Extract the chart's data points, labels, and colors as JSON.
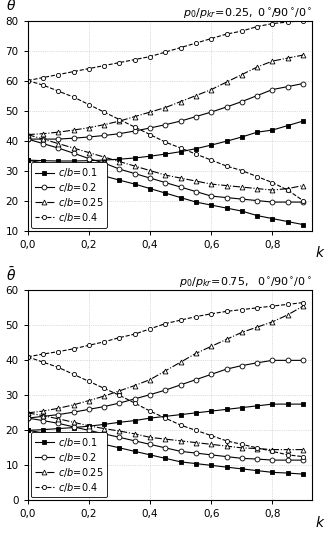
{
  "plot1": {
    "title": "$p_0/p_{kr}\\!=\\!0.25,\\ 0^\\circ\\!/90^\\circ\\!/0^\\circ$",
    "ylabel": "$\\bar{\\theta}$",
    "xlabel": "$k$",
    "ylim": [
      10,
      80
    ],
    "xlim": [
      0.0,
      0.93
    ],
    "yticks": [
      10,
      20,
      30,
      40,
      50,
      60,
      70,
      80
    ],
    "xticks": [
      0.0,
      0.2,
      0.4,
      0.6,
      0.8
    ],
    "xticklabels": [
      "0,0",
      "0,2",
      "0,4",
      "0,6",
      "0,8"
    ],
    "series": [
      {
        "label": "c/b=0.1",
        "marker": "s",
        "mfc": "black",
        "mec": "black",
        "ms": 3.0,
        "linestyle": "solid",
        "upper_k": [
          0.0,
          0.05,
          0.1,
          0.15,
          0.2,
          0.25,
          0.3,
          0.35,
          0.4,
          0.45,
          0.5,
          0.55,
          0.6,
          0.65,
          0.7,
          0.75,
          0.8,
          0.85,
          0.9
        ],
        "upper_v": [
          33.5,
          33.3,
          33.2,
          33.2,
          33.3,
          33.5,
          33.8,
          34.2,
          34.8,
          35.5,
          36.3,
          37.3,
          38.5,
          39.8,
          41.2,
          42.8,
          43.5,
          45.0,
          46.5
        ],
        "lower_k": [
          0.0,
          0.05,
          0.1,
          0.15,
          0.2,
          0.25,
          0.3,
          0.35,
          0.4,
          0.45,
          0.5,
          0.55,
          0.6,
          0.65,
          0.7,
          0.75,
          0.8,
          0.85,
          0.9
        ],
        "lower_v": [
          33.5,
          32.5,
          31.5,
          30.5,
          29.5,
          28.2,
          26.8,
          25.5,
          24.0,
          22.5,
          21.0,
          19.5,
          18.5,
          17.5,
          16.5,
          15.0,
          14.0,
          13.0,
          12.0
        ]
      },
      {
        "label": "c/b=0.2",
        "marker": "o",
        "mfc": "white",
        "mec": "black",
        "ms": 3.5,
        "linestyle": "solid",
        "upper_k": [
          0.0,
          0.05,
          0.1,
          0.15,
          0.2,
          0.25,
          0.3,
          0.35,
          0.4,
          0.45,
          0.5,
          0.55,
          0.6,
          0.65,
          0.7,
          0.75,
          0.8,
          0.85,
          0.9
        ],
        "upper_v": [
          40.5,
          40.5,
          40.5,
          40.8,
          41.2,
          41.7,
          42.3,
          43.2,
          44.2,
          45.3,
          46.5,
          48.0,
          49.5,
          51.2,
          53.0,
          55.0,
          57.0,
          58.0,
          59.0
        ],
        "lower_k": [
          0.0,
          0.05,
          0.1,
          0.15,
          0.2,
          0.25,
          0.3,
          0.35,
          0.4,
          0.45,
          0.5,
          0.55,
          0.6,
          0.65,
          0.7,
          0.75,
          0.8,
          0.85,
          0.9
        ],
        "lower_v": [
          40.5,
          39.0,
          37.5,
          35.8,
          34.0,
          32.5,
          30.5,
          29.0,
          27.5,
          26.0,
          24.5,
          23.0,
          21.5,
          21.0,
          20.5,
          20.0,
          19.5,
          19.5,
          19.5
        ]
      },
      {
        "label": "c/b=0.25",
        "marker": "^",
        "mfc": "white",
        "mec": "black",
        "ms": 3.5,
        "linestyle": "dashdot",
        "upper_k": [
          0.0,
          0.05,
          0.1,
          0.15,
          0.2,
          0.25,
          0.3,
          0.35,
          0.4,
          0.45,
          0.5,
          0.55,
          0.6,
          0.65,
          0.7,
          0.75,
          0.8,
          0.85,
          0.9
        ],
        "upper_v": [
          42.0,
          42.3,
          42.8,
          43.5,
          44.3,
          45.3,
          46.5,
          48.0,
          49.5,
          51.0,
          53.0,
          55.0,
          57.0,
          59.5,
          62.0,
          64.5,
          66.5,
          67.5,
          68.5
        ],
        "lower_k": [
          0.0,
          0.05,
          0.1,
          0.15,
          0.2,
          0.25,
          0.3,
          0.35,
          0.4,
          0.45,
          0.5,
          0.55,
          0.6,
          0.65,
          0.7,
          0.75,
          0.8,
          0.85,
          0.9
        ],
        "lower_v": [
          42.0,
          40.5,
          39.0,
          37.5,
          36.0,
          34.5,
          33.0,
          31.5,
          30.0,
          28.5,
          27.5,
          26.5,
          25.5,
          25.0,
          24.5,
          24.0,
          23.5,
          24.0,
          25.0
        ]
      },
      {
        "label": "c/b=0.4",
        "marker": "o",
        "mfc": "white",
        "mec": "black",
        "ms": 3.0,
        "linestyle": "dashed",
        "upper_k": [
          0.0,
          0.05,
          0.1,
          0.15,
          0.2,
          0.25,
          0.3,
          0.35,
          0.4,
          0.45,
          0.5,
          0.55,
          0.6,
          0.65,
          0.7,
          0.75,
          0.8,
          0.85,
          0.9
        ],
        "upper_v": [
          60.0,
          61.0,
          62.0,
          63.0,
          64.0,
          65.0,
          66.0,
          67.0,
          68.0,
          69.5,
          71.0,
          72.5,
          74.0,
          75.5,
          76.5,
          78.0,
          79.0,
          79.5,
          80.0
        ],
        "lower_k": [
          0.0,
          0.05,
          0.1,
          0.15,
          0.2,
          0.25,
          0.3,
          0.35,
          0.4,
          0.45,
          0.5,
          0.55,
          0.6,
          0.65,
          0.7,
          0.75,
          0.8,
          0.85,
          0.9
        ],
        "lower_v": [
          60.0,
          58.5,
          56.5,
          54.5,
          52.0,
          49.5,
          47.0,
          44.5,
          42.0,
          39.5,
          37.5,
          35.5,
          33.5,
          31.5,
          30.0,
          28.0,
          26.0,
          23.5,
          20.0
        ]
      }
    ]
  },
  "plot2": {
    "title": "$p_0/p_{kr}\\!=\\!0.75,\\ \\ 0^\\circ\\!/90^\\circ\\!/0^\\circ$",
    "ylabel": "$\\bar{\\theta}$",
    "xlabel": "$k$",
    "ylim": [
      0,
      60
    ],
    "xlim": [
      0.0,
      0.93
    ],
    "yticks": [
      0,
      10,
      20,
      30,
      40,
      50,
      60
    ],
    "xticks": [
      0.0,
      0.2,
      0.4,
      0.6,
      0.8
    ],
    "xticklabels": [
      "0,0",
      "0,2",
      "0,4",
      "0,6",
      "0,8"
    ],
    "series": [
      {
        "label": "c/b=0.1",
        "marker": "s",
        "mfc": "black",
        "mec": "black",
        "ms": 3.0,
        "linestyle": "solid",
        "upper_k": [
          0.0,
          0.05,
          0.1,
          0.15,
          0.2,
          0.25,
          0.3,
          0.35,
          0.4,
          0.45,
          0.5,
          0.55,
          0.6,
          0.65,
          0.7,
          0.75,
          0.8,
          0.85,
          0.9
        ],
        "upper_v": [
          20.0,
          20.2,
          20.5,
          20.8,
          21.2,
          21.7,
          22.3,
          22.8,
          23.5,
          24.0,
          24.5,
          25.0,
          25.5,
          26.0,
          26.5,
          27.0,
          27.5,
          27.5,
          27.5
        ],
        "lower_k": [
          0.0,
          0.05,
          0.1,
          0.15,
          0.2,
          0.25,
          0.3,
          0.35,
          0.4,
          0.45,
          0.5,
          0.55,
          0.6,
          0.65,
          0.7,
          0.75,
          0.8,
          0.85,
          0.9
        ],
        "lower_v": [
          20.0,
          19.3,
          18.5,
          17.7,
          16.8,
          16.0,
          15.0,
          14.0,
          13.0,
          12.0,
          11.0,
          10.5,
          10.0,
          9.5,
          9.0,
          8.5,
          8.0,
          7.8,
          7.5
        ]
      },
      {
        "label": "c/b=0.2",
        "marker": "o",
        "mfc": "white",
        "mec": "black",
        "ms": 3.5,
        "linestyle": "solid",
        "upper_k": [
          0.0,
          0.05,
          0.1,
          0.15,
          0.2,
          0.25,
          0.3,
          0.35,
          0.4,
          0.45,
          0.5,
          0.55,
          0.6,
          0.65,
          0.7,
          0.75,
          0.8,
          0.85,
          0.9
        ],
        "upper_v": [
          23.5,
          24.0,
          24.5,
          25.2,
          26.0,
          26.8,
          27.8,
          29.0,
          30.2,
          31.5,
          33.0,
          34.5,
          36.0,
          37.5,
          38.5,
          39.3,
          40.0,
          40.0,
          40.0
        ],
        "lower_k": [
          0.0,
          0.05,
          0.1,
          0.15,
          0.2,
          0.25,
          0.3,
          0.35,
          0.4,
          0.45,
          0.5,
          0.55,
          0.6,
          0.65,
          0.7,
          0.75,
          0.8,
          0.85,
          0.9
        ],
        "lower_v": [
          23.5,
          22.8,
          22.0,
          21.0,
          20.0,
          19.0,
          18.0,
          17.0,
          16.0,
          15.0,
          14.0,
          13.5,
          13.0,
          12.5,
          12.0,
          11.8,
          11.5,
          11.5,
          11.5
        ]
      },
      {
        "label": "c/b=0.25",
        "marker": "^",
        "mfc": "white",
        "mec": "black",
        "ms": 3.5,
        "linestyle": "dashdot",
        "upper_k": [
          0.0,
          0.05,
          0.1,
          0.15,
          0.2,
          0.25,
          0.3,
          0.35,
          0.4,
          0.45,
          0.5,
          0.55,
          0.6,
          0.65,
          0.7,
          0.75,
          0.8,
          0.85,
          0.9
        ],
        "upper_v": [
          25.0,
          25.5,
          26.3,
          27.3,
          28.5,
          29.8,
          31.3,
          32.8,
          34.5,
          37.0,
          39.5,
          42.0,
          44.0,
          46.0,
          48.0,
          49.5,
          51.0,
          53.0,
          55.5
        ],
        "lower_k": [
          0.0,
          0.05,
          0.1,
          0.15,
          0.2,
          0.25,
          0.3,
          0.35,
          0.4,
          0.45,
          0.5,
          0.55,
          0.6,
          0.65,
          0.7,
          0.75,
          0.8,
          0.85,
          0.9
        ],
        "lower_v": [
          25.0,
          24.2,
          23.3,
          22.3,
          21.3,
          20.5,
          19.8,
          19.0,
          18.0,
          17.5,
          17.0,
          16.5,
          16.0,
          15.5,
          15.0,
          14.8,
          14.5,
          14.5,
          14.5
        ]
      },
      {
        "label": "c/b=0.4",
        "marker": "o",
        "mfc": "white",
        "mec": "black",
        "ms": 3.0,
        "linestyle": "dashed",
        "upper_k": [
          0.0,
          0.05,
          0.1,
          0.15,
          0.2,
          0.25,
          0.3,
          0.35,
          0.4,
          0.45,
          0.5,
          0.55,
          0.6,
          0.65,
          0.7,
          0.75,
          0.8,
          0.85,
          0.9
        ],
        "upper_v": [
          41.0,
          41.8,
          42.5,
          43.3,
          44.3,
          45.3,
          46.5,
          47.5,
          49.0,
          50.5,
          51.5,
          52.5,
          53.3,
          54.0,
          54.5,
          55.0,
          55.5,
          56.0,
          56.5
        ],
        "lower_k": [
          0.0,
          0.05,
          0.1,
          0.15,
          0.2,
          0.25,
          0.3,
          0.35,
          0.4,
          0.45,
          0.5,
          0.55,
          0.6,
          0.65,
          0.7,
          0.75,
          0.8,
          0.85,
          0.9
        ],
        "lower_v": [
          41.0,
          39.5,
          38.0,
          36.0,
          34.0,
          32.0,
          30.0,
          27.8,
          25.5,
          23.5,
          21.5,
          20.0,
          18.5,
          17.0,
          16.0,
          15.0,
          14.0,
          13.0,
          12.5
        ]
      }
    ]
  },
  "grid_color": "#bbbbbb",
  "legend_fontsize": 7,
  "tick_fontsize": 7.5,
  "title_fontsize": 8,
  "label_fontsize": 10
}
